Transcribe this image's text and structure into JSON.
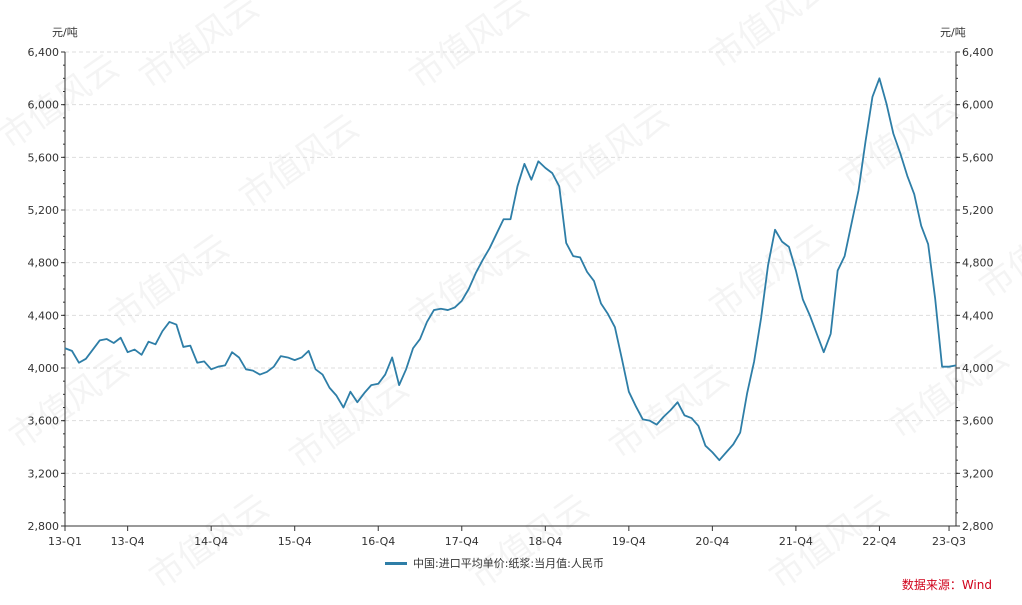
{
  "chart_data": {
    "type": "line",
    "y_unit_left": "元/吨",
    "y_unit_right": "元/吨",
    "ylim": [
      2800,
      6400
    ],
    "yticks": [
      "2,800",
      "3,200",
      "3,600",
      "4,000",
      "4,400",
      "4,800",
      "5,200",
      "5,600",
      "6,000",
      "6,400"
    ],
    "yticks_values": [
      2800,
      3200,
      3600,
      4000,
      4400,
      4800,
      5200,
      5600,
      6000,
      6400
    ],
    "x_tick_labels": [
      "13-Q1",
      "13-Q4",
      "14-Q4",
      "15-Q4",
      "16-Q4",
      "17-Q4",
      "18-Q4",
      "19-Q4",
      "20-Q4",
      "21-Q4",
      "22-Q4",
      "23-Q3"
    ],
    "x_tick_positions": [
      "2013-01",
      "2013-10",
      "2014-10",
      "2015-10",
      "2016-10",
      "2017-10",
      "2018-10",
      "2019-10",
      "2020-10",
      "2021-10",
      "2022-10",
      "2023-08"
    ],
    "grid": true,
    "legend_position": "bottom-center",
    "series": [
      {
        "name": "中国:进口平均单价:纸浆:当月值:人民币",
        "color": "#2e7ea7",
        "x": [
          "2013-01",
          "2013-02",
          "2013-03",
          "2013-04",
          "2013-05",
          "2013-06",
          "2013-07",
          "2013-08",
          "2013-09",
          "2013-10",
          "2013-11",
          "2013-12",
          "2014-01",
          "2014-02",
          "2014-03",
          "2014-04",
          "2014-05",
          "2014-06",
          "2014-07",
          "2014-08",
          "2014-09",
          "2014-10",
          "2014-11",
          "2014-12",
          "2015-01",
          "2015-02",
          "2015-03",
          "2015-04",
          "2015-05",
          "2015-06",
          "2015-07",
          "2015-08",
          "2015-09",
          "2015-10",
          "2015-11",
          "2015-12",
          "2016-01",
          "2016-02",
          "2016-03",
          "2016-04",
          "2016-05",
          "2016-06",
          "2016-07",
          "2016-08",
          "2016-09",
          "2016-10",
          "2016-11",
          "2016-12",
          "2017-01",
          "2017-02",
          "2017-03",
          "2017-04",
          "2017-05",
          "2017-06",
          "2017-07",
          "2017-08",
          "2017-09",
          "2017-10",
          "2017-11",
          "2017-12",
          "2018-01",
          "2018-02",
          "2018-03",
          "2018-04",
          "2018-05",
          "2018-06",
          "2018-07",
          "2018-08",
          "2018-09",
          "2018-10",
          "2018-11",
          "2018-12",
          "2019-01",
          "2019-02",
          "2019-03",
          "2019-04",
          "2019-05",
          "2019-06",
          "2019-07",
          "2019-08",
          "2019-09",
          "2019-10",
          "2019-11",
          "2019-12",
          "2020-01",
          "2020-02",
          "2020-03",
          "2020-04",
          "2020-05",
          "2020-06",
          "2020-07",
          "2020-08",
          "2020-09",
          "2020-10",
          "2020-11",
          "2020-12",
          "2021-01",
          "2021-02",
          "2021-03",
          "2021-04",
          "2021-05",
          "2021-06",
          "2021-07",
          "2021-08",
          "2021-09",
          "2021-10",
          "2021-11",
          "2021-12",
          "2022-01",
          "2022-02",
          "2022-03",
          "2022-04",
          "2022-05",
          "2022-06",
          "2022-07",
          "2022-08",
          "2022-09",
          "2022-10",
          "2022-11",
          "2022-12",
          "2023-01",
          "2023-02",
          "2023-03",
          "2023-04",
          "2023-05",
          "2023-06",
          "2023-07",
          "2023-08",
          "2023-09"
        ],
        "values": [
          4150,
          4130,
          4040,
          4070,
          4140,
          4210,
          4220,
          4190,
          4230,
          4120,
          4140,
          4100,
          4200,
          4180,
          4280,
          4350,
          4330,
          4160,
          4170,
          4040,
          4050,
          3990,
          4010,
          4020,
          4120,
          4080,
          3990,
          3980,
          3950,
          3970,
          4010,
          4090,
          4080,
          4060,
          4080,
          4130,
          3990,
          3950,
          3850,
          3790,
          3700,
          3820,
          3740,
          3810,
          3870,
          3880,
          3950,
          4080,
          3870,
          3990,
          4150,
          4220,
          4350,
          4440,
          4450,
          4440,
          4460,
          4510,
          4600,
          4720,
          4820,
          4910,
          5020,
          5130,
          5130,
          5380,
          5550,
          5430,
          5570,
          5520,
          5480,
          5380,
          4950,
          4850,
          4840,
          4730,
          4660,
          4490,
          4410,
          4310,
          4070,
          3820,
          3710,
          3610,
          3600,
          3570,
          3630,
          3680,
          3740,
          3640,
          3620,
          3560,
          3410,
          3360,
          3300,
          3360,
          3420,
          3510,
          3810,
          4050,
          4380,
          4780,
          5050,
          4960,
          4920,
          4740,
          4520,
          4400,
          4260,
          4120,
          4260,
          4740,
          4850,
          5100,
          5350,
          5720,
          6060,
          6200,
          6010,
          5780,
          5630,
          5460,
          5320,
          5080,
          4940,
          4530,
          4010,
          4010,
          4020
        ]
      }
    ]
  },
  "legend": {
    "label": "中国:进口平均单价:纸浆:当月值:人民币"
  },
  "source": {
    "text": "数据来源：Wind",
    "color": "#d0021b"
  },
  "watermark": {
    "text": "市值风云"
  }
}
